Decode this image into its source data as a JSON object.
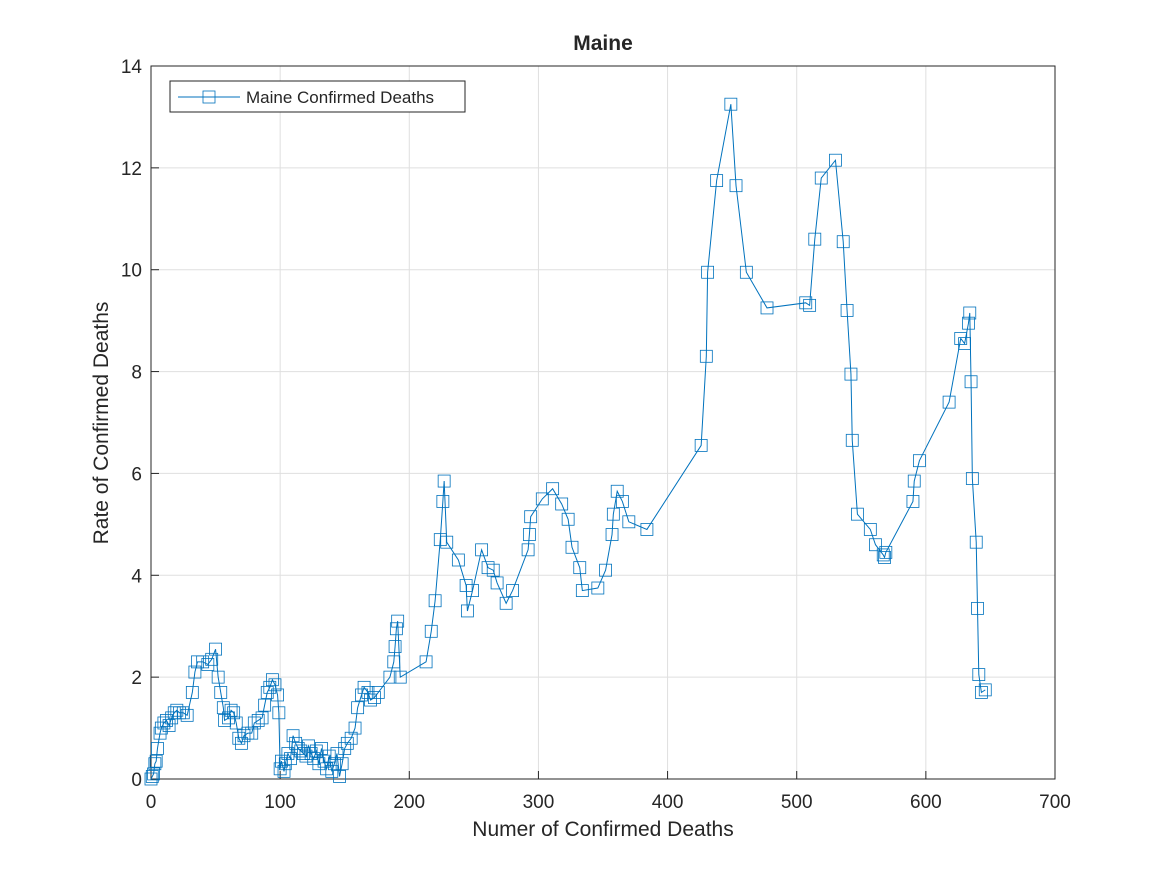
{
  "chart_data": {
    "type": "line",
    "title": "Maine",
    "x_label": "Numer of Confirmed Deaths",
    "y_label": "Rate of Confirmed Deaths",
    "x": [
      0,
      1,
      2,
      3,
      4,
      5,
      7,
      8,
      10,
      12,
      14,
      16,
      18,
      20,
      22,
      25,
      28,
      32,
      34,
      36,
      40,
      44,
      47,
      50,
      52,
      54,
      56,
      57,
      60,
      62,
      64,
      66,
      68,
      70,
      72,
      75,
      78,
      80,
      83,
      86,
      88,
      90,
      92,
      94,
      96,
      98,
      99,
      100,
      101,
      103,
      104,
      106,
      108,
      110,
      112,
      114,
      116,
      118,
      120,
      122,
      124,
      126,
      128,
      130,
      132,
      134,
      136,
      138,
      140,
      142,
      144,
      146,
      148,
      150,
      152,
      155,
      158,
      160,
      163,
      165,
      168,
      170,
      173,
      176,
      185,
      188,
      189,
      190,
      191,
      193,
      213,
      217,
      220,
      224,
      226,
      227,
      229,
      238,
      244,
      245,
      249,
      256,
      261,
      265,
      268,
      275,
      280,
      292,
      293,
      294,
      303,
      311,
      318,
      323,
      326,
      332,
      334,
      346,
      352,
      357,
      358,
      361,
      365,
      370,
      384,
      426,
      430,
      431,
      438,
      449,
      453,
      461,
      477,
      507,
      510,
      514,
      519,
      530,
      536,
      539,
      542,
      543,
      547,
      557,
      561,
      567,
      568,
      569,
      590,
      591,
      595,
      618,
      627,
      630,
      633,
      634,
      635,
      636,
      639,
      640,
      641,
      643,
      646
    ],
    "series": [
      {
        "name": "Maine Confirmed Deaths",
        "color": "#0072bd",
        "marker": "square",
        "values": [
          0,
          0.05,
          0.1,
          0.3,
          0.35,
          0.6,
          0.9,
          1.0,
          1.1,
          1.15,
          1.05,
          1.2,
          1.3,
          1.35,
          1.3,
          1.3,
          1.25,
          1.7,
          2.1,
          2.3,
          2.3,
          2.25,
          2.35,
          2.55,
          2.0,
          1.7,
          1.4,
          1.15,
          1.2,
          1.35,
          1.3,
          1.1,
          0.8,
          0.7,
          0.85,
          0.9,
          0.9,
          1.1,
          1.15,
          1.2,
          1.45,
          1.7,
          1.8,
          1.95,
          1.85,
          1.65,
          1.3,
          0.2,
          0.35,
          0.15,
          0.3,
          0.5,
          0.4,
          0.85,
          0.7,
          0.6,
          0.55,
          0.5,
          0.45,
          0.65,
          0.5,
          0.4,
          0.55,
          0.3,
          0.6,
          0.35,
          0.2,
          0.45,
          0.15,
          0.3,
          0.5,
          0.05,
          0.3,
          0.6,
          0.7,
          0.8,
          1.0,
          1.4,
          1.65,
          1.8,
          1.7,
          1.55,
          1.6,
          1.7,
          2.0,
          2.3,
          2.6,
          2.95,
          3.1,
          2.0,
          2.3,
          2.9,
          3.5,
          4.7,
          5.45,
          5.85,
          4.65,
          4.3,
          3.8,
          3.3,
          3.7,
          4.5,
          4.15,
          4.1,
          3.85,
          3.45,
          3.7,
          4.5,
          4.8,
          5.15,
          5.5,
          5.7,
          5.4,
          5.1,
          4.55,
          4.15,
          3.7,
          3.75,
          4.1,
          4.8,
          5.2,
          5.65,
          5.45,
          5.05,
          4.9,
          6.55,
          8.3,
          9.95,
          11.75,
          13.25,
          11.65,
          9.95,
          9.25,
          9.35,
          9.3,
          10.6,
          11.8,
          12.15,
          10.55,
          9.2,
          7.95,
          6.65,
          5.2,
          4.9,
          4.6,
          4.4,
          4.35,
          4.45,
          5.45,
          5.85,
          6.25,
          7.4,
          8.65,
          8.55,
          8.95,
          9.15,
          7.8,
          5.9,
          4.65,
          3.35,
          2.05,
          1.7,
          1.75
        ]
      }
    ],
    "xlim": [
      0,
      700
    ],
    "xticks": [
      0,
      100,
      200,
      300,
      400,
      500,
      600,
      700
    ],
    "ylim": [
      0,
      14
    ],
    "yticks": [
      0,
      2,
      4,
      6,
      8,
      10,
      12,
      14
    ],
    "grid": true,
    "legend": "top-left"
  }
}
